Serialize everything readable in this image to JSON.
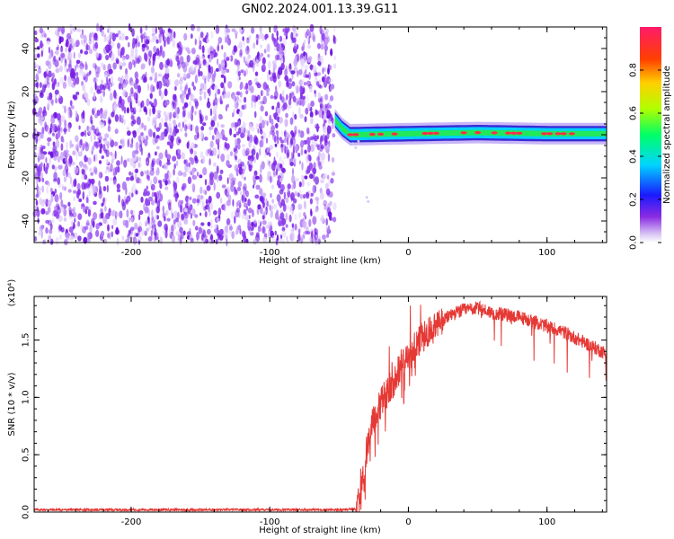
{
  "title": "GN02.2024.001.13.39.G11",
  "colors": {
    "snr_line": "#e53935",
    "axis": "#000000",
    "background": "#ffffff"
  },
  "chart_data": [
    {
      "type": "heatmap",
      "title": "GN02.2024.001.13.39.G11",
      "xlabel": "Height of straight line (km)",
      "ylabel": "Frequency (Hz)",
      "xlim": [
        -270,
        143
      ],
      "ylim": [
        -50,
        50
      ],
      "xticks": [
        -200,
        -100,
        0,
        100
      ],
      "yticks": [
        -40,
        -20,
        0,
        20,
        40
      ],
      "noise_region": {
        "x_range": [
          -270,
          -53
        ],
        "y_range": [
          -50,
          50
        ]
      },
      "signal_band": {
        "x_range": [
          -53,
          143
        ],
        "points": [
          {
            "x": -53,
            "y": 7
          },
          {
            "x": -48,
            "y": 3
          },
          {
            "x": -42,
            "y": 0
          },
          {
            "x": 0,
            "y": 0.5
          },
          {
            "x": 50,
            "y": 1
          },
          {
            "x": 100,
            "y": 0.5
          },
          {
            "x": 143,
            "y": 0.5
          }
        ]
      },
      "colorbar": {
        "label": "Normalized spectral amplitude",
        "range": [
          0,
          1
        ],
        "ticks": [
          "0.0",
          "0.2",
          "0.4",
          "0.6",
          "0.8"
        ],
        "colormap": "rainbow"
      },
      "grid": false
    },
    {
      "type": "line",
      "xlabel": "Height of straight line (km)",
      "ylabel": "SNR (10 * v/v)",
      "scale_label": "(x10⁴)",
      "xlim": [
        -270,
        143
      ],
      "ylim": [
        0,
        1.88
      ],
      "xticks": [
        -200,
        -100,
        0,
        100
      ],
      "yticks": [
        "0.0",
        "0.5",
        "1.0",
        "1.5"
      ],
      "y_units_multiplier": 10000,
      "series": [
        {
          "color": "#e53935",
          "x": [
            -270,
            -250,
            -200,
            -150,
            -100,
            -60,
            -45,
            -38,
            -35,
            -33,
            -30,
            -28,
            -25,
            -20,
            -15,
            -10,
            -5,
            0,
            5,
            10,
            15,
            20,
            25,
            30,
            40,
            50,
            60,
            70,
            80,
            90,
            100,
            110,
            120,
            130,
            143
          ],
          "y": [
            0.02,
            0.02,
            0.02,
            0.02,
            0.02,
            0.02,
            0.02,
            0.03,
            0.1,
            0.25,
            0.55,
            0.7,
            0.8,
            0.95,
            1.05,
            1.15,
            1.3,
            1.35,
            1.45,
            1.52,
            1.58,
            1.62,
            1.66,
            1.72,
            1.76,
            1.78,
            1.74,
            1.72,
            1.7,
            1.66,
            1.62,
            1.58,
            1.52,
            1.46,
            1.38
          ]
        }
      ],
      "grid": false
    }
  ]
}
